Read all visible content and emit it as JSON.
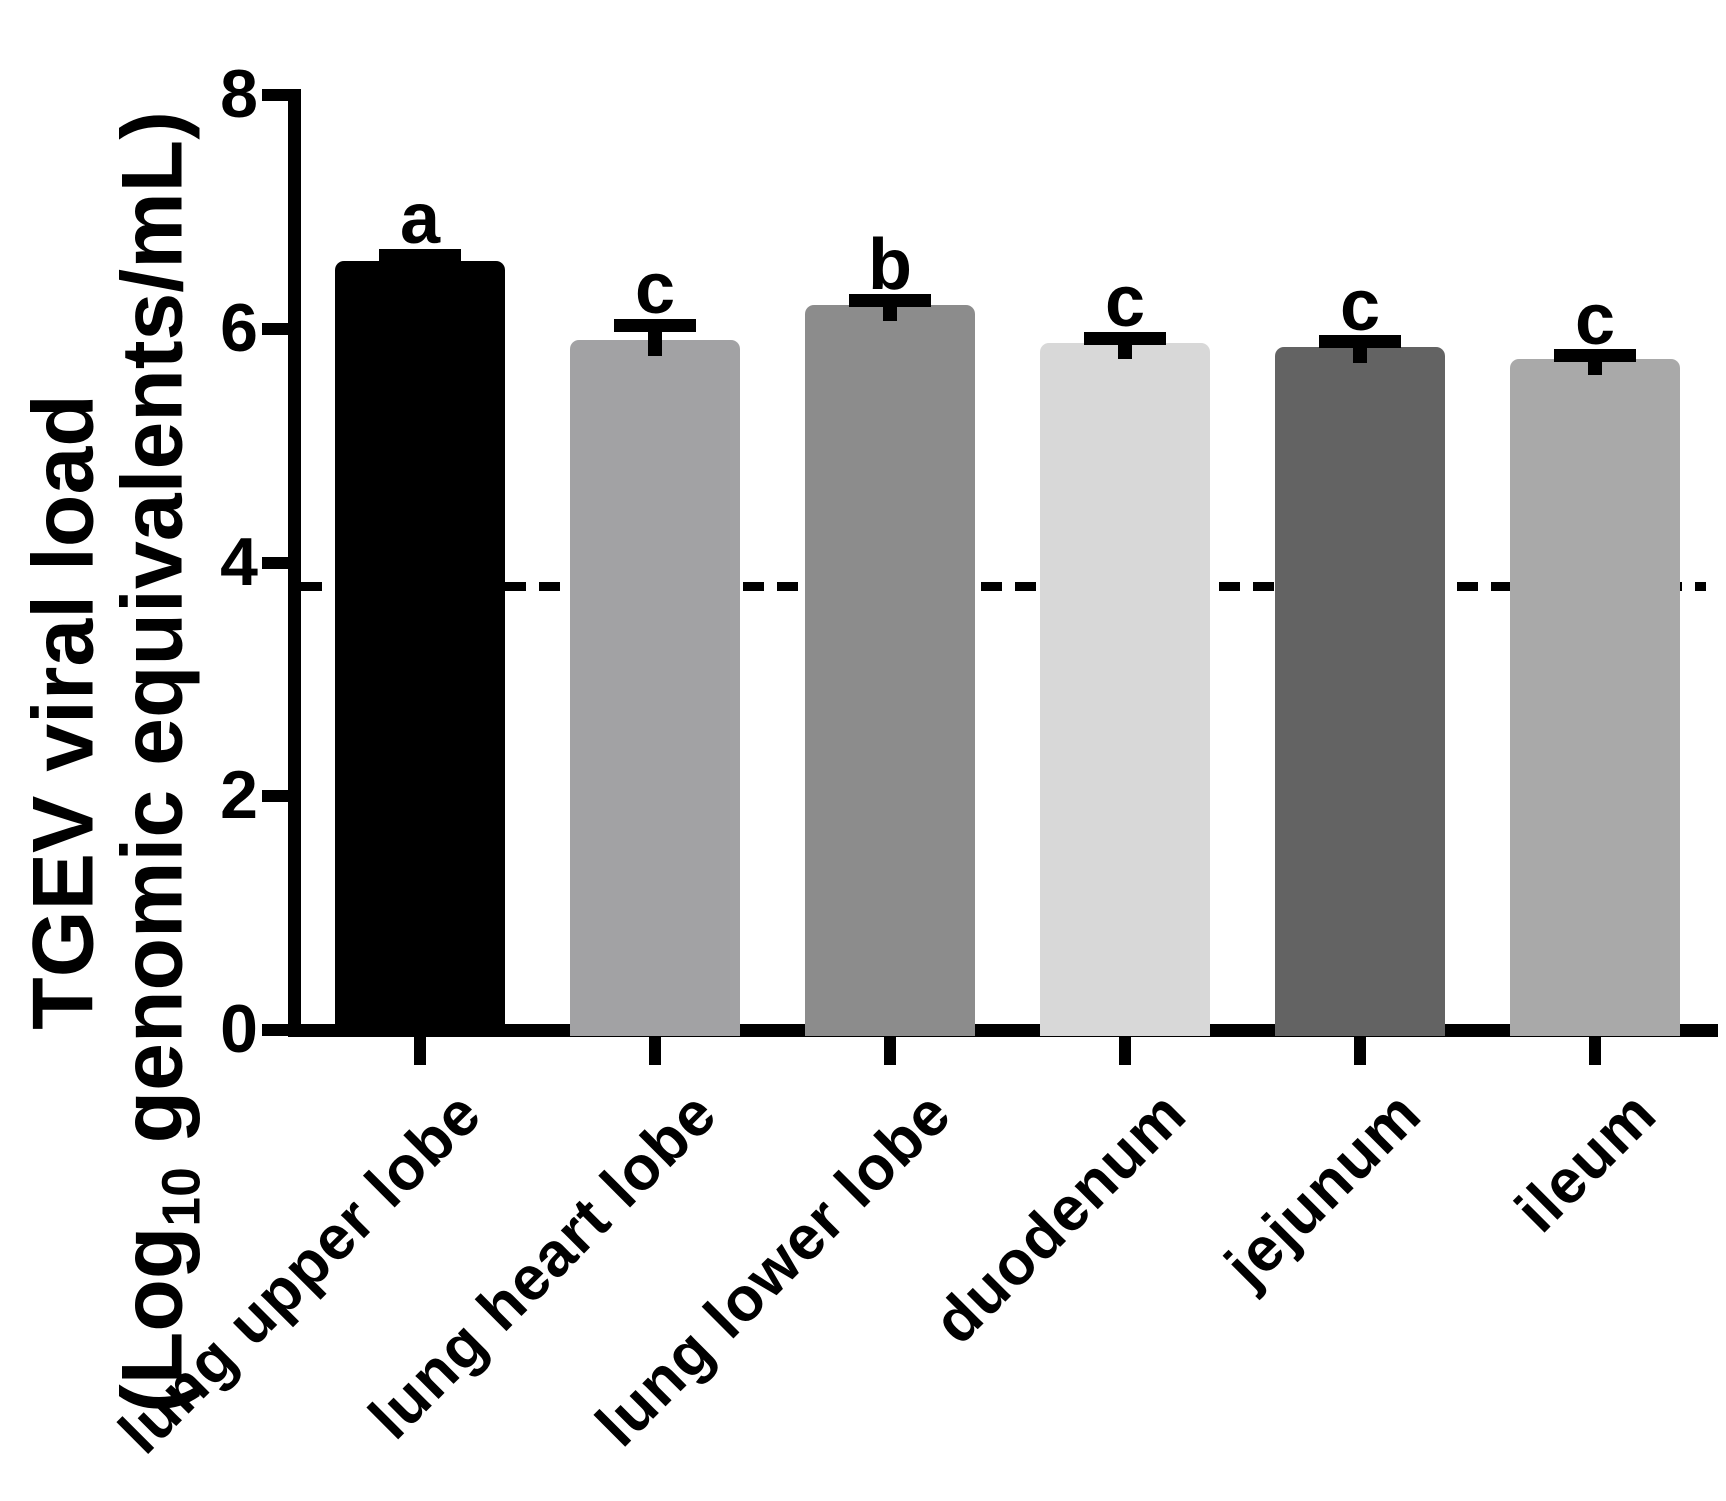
{
  "chart_data": {
    "type": "bar",
    "title": "",
    "categories": [
      "lung upper lobe",
      "lung heart lobe",
      "lung lower lobe",
      "duodenum",
      "jejunum",
      "ileum"
    ],
    "values": [
      6.58,
      5.9,
      6.2,
      5.88,
      5.84,
      5.74
    ],
    "errors": [
      0.05,
      0.13,
      0.04,
      0.04,
      0.05,
      0.03
    ],
    "significance_letters": [
      "a",
      "c",
      "b",
      "c",
      "c",
      "c"
    ],
    "bar_colors": [
      "#000000",
      "#a2a2a4",
      "#8c8c8c",
      "#d8d8d8",
      "#636363",
      "#a9a9a9"
    ],
    "error_bar_color": "#000000",
    "ylabel_line1": "TGEV viral load",
    "ylabel_line2_pre": "(Log",
    "ylabel_line2_sub": "10",
    "ylabel_line2_post": " genomic equivalents/mL)",
    "xlabel": "",
    "yticks": [
      0,
      2,
      4,
      6,
      8
    ],
    "ylim": [
      0,
      8
    ],
    "detection_limit_line": 3.8,
    "grid": false,
    "legend": null,
    "axis_color": "#000000"
  }
}
